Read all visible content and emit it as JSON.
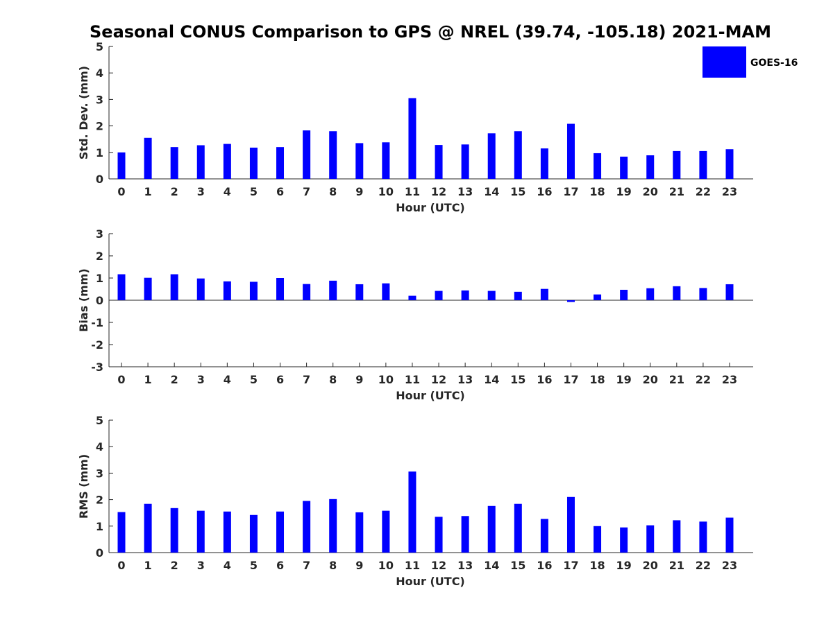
{
  "chart_data": {
    "type": "bar",
    "title": "Seasonal CONUS Comparison to GPS @ NREL (39.74, -105.18) 2021-MAM",
    "bar_color": "#0000ff",
    "legend": {
      "label": "GOES-16",
      "placement": "top-right"
    },
    "panels": [
      {
        "id": "std",
        "xlabel": "Hour (UTC)",
        "ylabel": "Std. Dev. (mm)",
        "ylim": [
          0,
          5
        ],
        "yticks": [
          0,
          1,
          2,
          3,
          4,
          5
        ],
        "categories": [
          "0",
          "1",
          "2",
          "3",
          "4",
          "5",
          "6",
          "7",
          "8",
          "9",
          "10",
          "11",
          "12",
          "13",
          "14",
          "15",
          "16",
          "17",
          "18",
          "19",
          "20",
          "21",
          "22",
          "23"
        ],
        "series": [
          {
            "name": "GOES-16",
            "values": [
              1.0,
              1.55,
              1.2,
              1.27,
              1.32,
              1.18,
              1.2,
              1.83,
              1.8,
              1.35,
              1.38,
              3.05,
              1.28,
              1.3,
              1.72,
              1.8,
              1.15,
              2.08,
              0.97,
              0.84,
              0.89,
              1.05,
              1.05,
              1.12
            ]
          }
        ]
      },
      {
        "id": "bias",
        "xlabel": "Hour (UTC)",
        "ylabel": "Bias (mm)",
        "ylim": [
          -3,
          3
        ],
        "yticks": [
          -3,
          -2,
          -1,
          0,
          1,
          2,
          3
        ],
        "categories": [
          "0",
          "1",
          "2",
          "3",
          "4",
          "5",
          "6",
          "7",
          "8",
          "9",
          "10",
          "11",
          "12",
          "13",
          "14",
          "15",
          "16",
          "17",
          "18",
          "19",
          "20",
          "21",
          "22",
          "23"
        ],
        "series": [
          {
            "name": "GOES-16",
            "values": [
              1.17,
              1.01,
              1.17,
              0.98,
              0.85,
              0.83,
              1.0,
              0.73,
              0.88,
              0.72,
              0.76,
              0.2,
              0.42,
              0.44,
              0.42,
              0.38,
              0.51,
              -0.08,
              0.26,
              0.47,
              0.54,
              0.63,
              0.55,
              0.72
            ]
          }
        ]
      },
      {
        "id": "rms",
        "xlabel": "Hour (UTC)",
        "ylabel": "RMS (mm)",
        "ylim": [
          0,
          5
        ],
        "yticks": [
          0,
          1,
          2,
          3,
          4,
          5
        ],
        "categories": [
          "0",
          "1",
          "2",
          "3",
          "4",
          "5",
          "6",
          "7",
          "8",
          "9",
          "10",
          "11",
          "12",
          "13",
          "14",
          "15",
          "16",
          "17",
          "18",
          "19",
          "20",
          "21",
          "22",
          "23"
        ],
        "series": [
          {
            "name": "GOES-16",
            "values": [
              1.53,
              1.84,
              1.68,
              1.58,
              1.55,
              1.42,
              1.55,
              1.95,
              2.02,
              1.52,
              1.58,
              3.06,
              1.35,
              1.38,
              1.76,
              1.84,
              1.27,
              2.1,
              1.0,
              0.95,
              1.03,
              1.22,
              1.17,
              1.32
            ]
          }
        ]
      }
    ]
  }
}
